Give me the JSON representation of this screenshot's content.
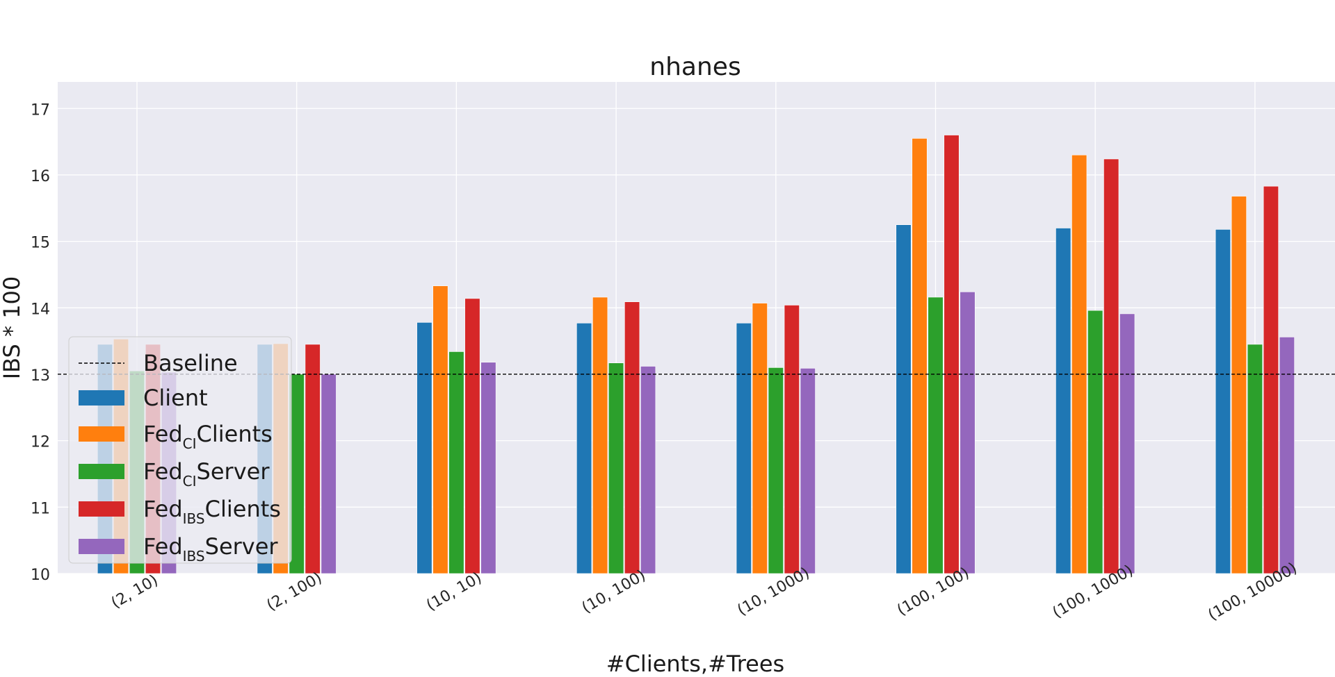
{
  "chart_data": {
    "type": "bar",
    "title": "nhanes",
    "xlabel": "#Clients,#Trees",
    "ylabel": "IBS * 100",
    "ylim": [
      10,
      17.4
    ],
    "yticks": [
      "10",
      "11",
      "12",
      "13",
      "14",
      "15",
      "16",
      "17"
    ],
    "grid": true,
    "legend_position": "lower-left",
    "categories": [
      "(2, 10)",
      "(2, 100)",
      "(10, 10)",
      "(10, 100)",
      "(10, 1000)",
      "(100, 100)",
      "(100, 1000)",
      "(100, 10000)"
    ],
    "baseline": {
      "name": "Baseline",
      "value": 13.0
    },
    "series": [
      {
        "name": "Client",
        "base": "Client",
        "sub": "",
        "suffix": "",
        "color": "#1f77b4",
        "values": [
          13.45,
          13.45,
          13.78,
          13.77,
          13.77,
          15.25,
          15.2,
          15.18
        ]
      },
      {
        "name": "FedCIClients",
        "base": "Fed",
        "sub": "CI",
        "suffix": "Clients",
        "color": "#ff7f0e",
        "values": [
          13.53,
          13.46,
          14.33,
          14.16,
          14.07,
          16.55,
          16.3,
          15.68
        ]
      },
      {
        "name": "FedCIServer",
        "base": "Fed",
        "sub": "CI",
        "suffix": "Server",
        "color": "#2ca02c",
        "values": [
          13.05,
          13.0,
          13.34,
          13.17,
          13.1,
          14.16,
          13.96,
          13.45
        ]
      },
      {
        "name": "FedIBSClients",
        "base": "Fed",
        "sub": "IBS",
        "suffix": "Clients",
        "color": "#d62728",
        "values": [
          13.45,
          13.45,
          14.14,
          14.09,
          14.04,
          16.6,
          16.24,
          15.83
        ]
      },
      {
        "name": "FedIBSServer",
        "base": "Fed",
        "sub": "IBS",
        "suffix": "Server",
        "color": "#9467bd",
        "values": [
          13.03,
          13.0,
          13.18,
          13.12,
          13.09,
          14.24,
          13.91,
          13.56
        ]
      }
    ]
  }
}
